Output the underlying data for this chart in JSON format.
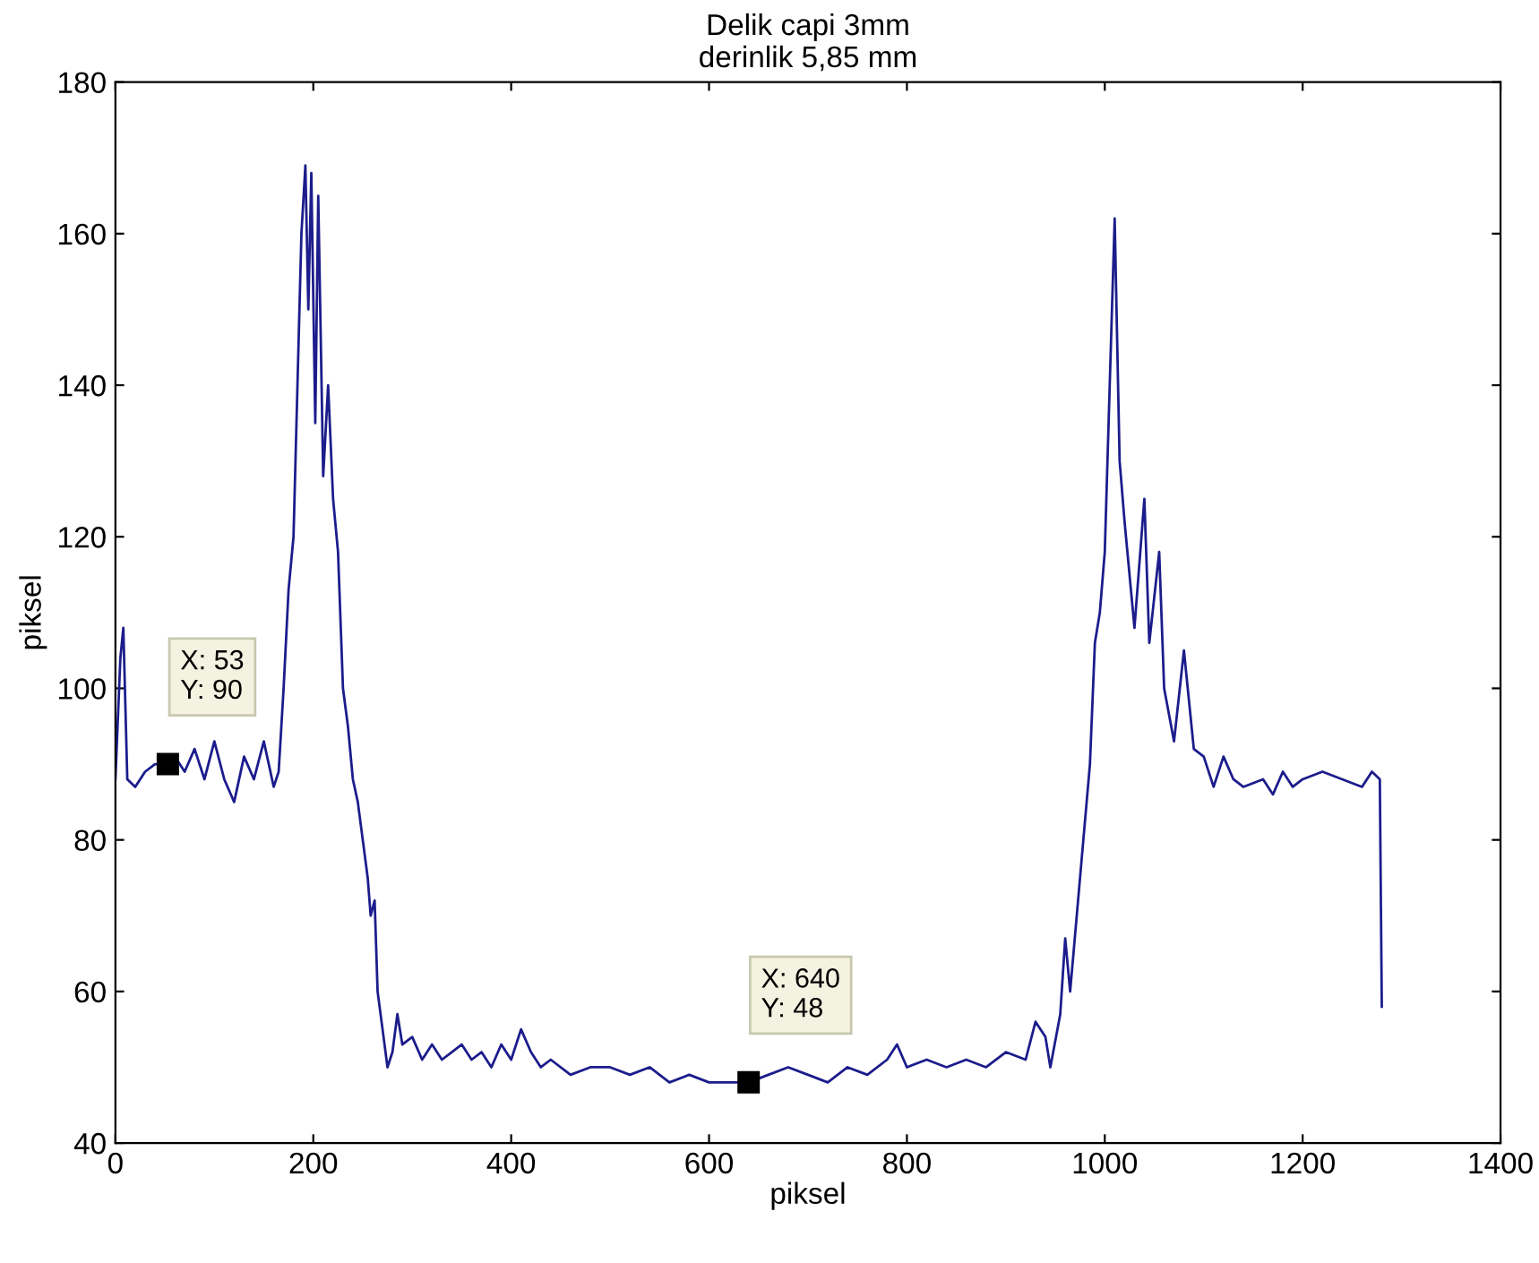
{
  "chart_data": {
    "type": "line",
    "title": "Delik capi 3mm\nderinlik 5,85 mm",
    "xlabel": "piksel",
    "ylabel": "piksel",
    "xlim": [
      0,
      1400
    ],
    "xticks": [
      0,
      200,
      400,
      600,
      800,
      1000,
      1200,
      1400
    ],
    "ylim": [
      40,
      180
    ],
    "yticks": [
      40,
      60,
      80,
      100,
      120,
      140,
      160,
      180
    ],
    "grid": false,
    "legend": false,
    "annotations": [
      {
        "text": "X: 53\nY: 90",
        "x": 53,
        "y": 90
      },
      {
        "text": "X: 640\nY: 48",
        "x": 640,
        "y": 48
      }
    ],
    "x": [
      0,
      5,
      8,
      12,
      20,
      30,
      40,
      53,
      60,
      70,
      80,
      90,
      100,
      110,
      120,
      130,
      140,
      150,
      160,
      165,
      170,
      175,
      180,
      185,
      188,
      192,
      195,
      198,
      202,
      205,
      210,
      215,
      220,
      225,
      230,
      235,
      240,
      245,
      250,
      255,
      258,
      262,
      265,
      270,
      275,
      280,
      285,
      290,
      300,
      310,
      320,
      330,
      340,
      350,
      360,
      370,
      380,
      390,
      400,
      410,
      420,
      430,
      440,
      460,
      480,
      500,
      520,
      540,
      560,
      580,
      600,
      620,
      640,
      660,
      680,
      700,
      720,
      740,
      760,
      780,
      790,
      800,
      820,
      840,
      860,
      880,
      900,
      920,
      930,
      940,
      945,
      955,
      960,
      965,
      975,
      985,
      990,
      995,
      1000,
      1005,
      1010,
      1015,
      1020,
      1030,
      1040,
      1045,
      1055,
      1060,
      1070,
      1080,
      1090,
      1100,
      1110,
      1120,
      1130,
      1140,
      1160,
      1170,
      1180,
      1190,
      1200,
      1220,
      1240,
      1260,
      1270,
      1278,
      1280
    ],
    "series": [
      {
        "color": "#1c1c8c",
        "values": [
          88,
          104,
          108,
          88,
          87,
          89,
          90,
          90,
          91,
          89,
          92,
          88,
          93,
          88,
          85,
          91,
          88,
          93,
          87,
          89,
          100,
          113,
          120,
          145,
          160,
          169,
          150,
          168,
          135,
          165,
          128,
          140,
          125,
          118,
          100,
          95,
          88,
          85,
          80,
          75,
          70,
          72,
          60,
          55,
          50,
          52,
          57,
          53,
          54,
          51,
          53,
          51,
          52,
          53,
          51,
          52,
          50,
          53,
          51,
          55,
          52,
          50,
          51,
          49,
          50,
          50,
          49,
          50,
          48,
          49,
          48,
          48,
          48,
          49,
          50,
          49,
          48,
          50,
          49,
          51,
          53,
          50,
          51,
          50,
          51,
          50,
          52,
          51,
          56,
          54,
          50,
          57,
          67,
          60,
          75,
          90,
          106,
          110,
          118,
          140,
          162,
          130,
          122,
          108,
          125,
          106,
          118,
          100,
          93,
          105,
          92,
          91,
          87,
          91,
          88,
          87,
          88,
          86,
          89,
          87,
          88,
          89,
          88,
          87,
          89,
          88,
          58
        ]
      }
    ]
  }
}
